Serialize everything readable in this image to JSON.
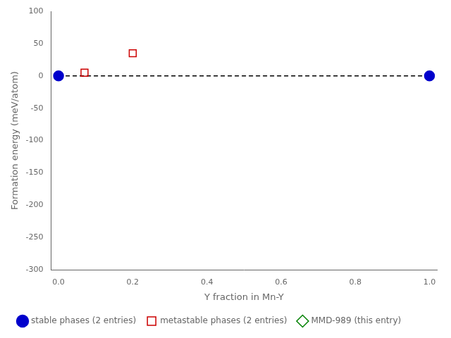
{
  "chart_data": {
    "type": "scatter",
    "xlabel": "Y fraction in Mn-Y",
    "ylabel": "Formation energy (meV/atom)",
    "series": [
      {
        "type": "line",
        "color": "black",
        "line_style": "dashed",
        "x": [
          0.0,
          1.0
        ],
        "values": [
          0.0,
          0.0
        ]
      },
      {
        "name": "stable phases (2 entries)",
        "type": "scatter",
        "marker": "circle",
        "color": "#0000cc",
        "x": [
          0.0,
          1.0
        ],
        "values": [
          0.0,
          0.0
        ]
      },
      {
        "name": "metastable phases (2 entries)",
        "type": "scatter",
        "marker": "square-open",
        "color": "#cc0000",
        "x": [
          0.07,
          0.2
        ],
        "values": [
          5.0,
          35.0
        ]
      },
      {
        "name": "MMD-989 (this entry)",
        "type": "scatter",
        "marker": "diamond-open",
        "color": "#008000",
        "x": [],
        "values": []
      }
    ],
    "xlim": [
      -0.02,
      1.02
    ],
    "xticks": [
      {
        "value": 0,
        "label": "0.0"
      },
      0.2,
      0.4,
      0.6,
      0.8,
      {
        "value": 1,
        "label": "1.0"
      }
    ],
    "ylim": [
      -300,
      100
    ],
    "yticks": [
      -300,
      -250,
      -200,
      -150,
      -100,
      -50,
      0,
      50,
      100
    ],
    "grid": false,
    "legend": "lower left"
  }
}
